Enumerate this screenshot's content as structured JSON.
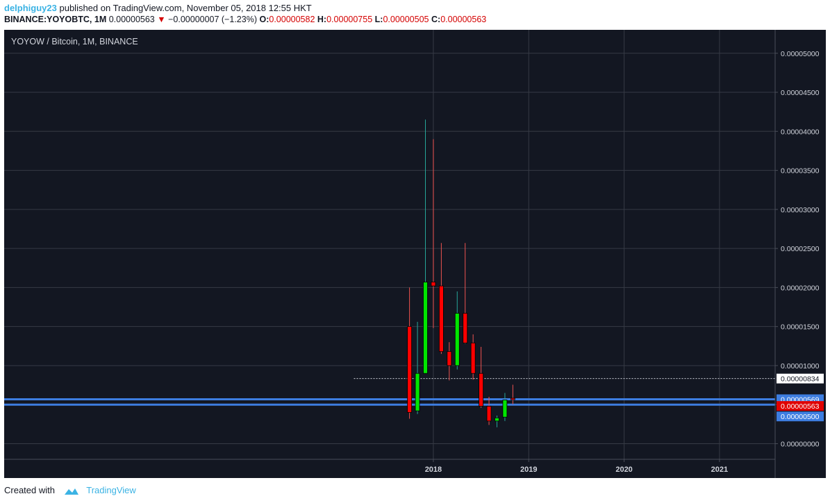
{
  "header": {
    "author": "delphiguy23",
    "publish_text": "published on TradingView.com, November 05, 2018 12:55 HKT",
    "symbol": "BINANCE:YOYOBTC, 1M",
    "price": "0.00000563",
    "change": "−0.00000007 (−1.23%)",
    "open_label": "O:",
    "open": "0.00000582",
    "high_label": "H:",
    "high": "0.00000755",
    "low_label": "L:",
    "low": "0.00000505",
    "close_label": "C:",
    "close": "0.00000563"
  },
  "footer": {
    "created_with": "Created with",
    "brand": "TradingView"
  },
  "colors": {
    "up": "#00e600",
    "down": "#ff0000",
    "background": "#131722",
    "grid": "#363a45",
    "hline": "#3d7de0"
  },
  "chart_data": {
    "type": "candlestick",
    "title": "YOYOW / Bitcoin, 1M, BINANCE",
    "ylim": [
      -2e-06,
      5.3e-05
    ],
    "y_ticks": [
      "0.00005000",
      "0.00004500",
      "0.00004000",
      "0.00003500",
      "0.00003000",
      "0.00002500",
      "0.00002000",
      "0.00001500",
      "0.00001000",
      "0.00000500",
      "0.00000000"
    ],
    "x_ticks": [
      "2018",
      "2019",
      "2020",
      "2021"
    ],
    "x_tick_months": [
      14,
      26,
      38,
      50
    ],
    "xlim": [
      -40,
      57
    ],
    "grid": true,
    "candles": [
      {
        "m": 11,
        "o": 1.5e-05,
        "h": 2e-05,
        "l": 3.2e-06,
        "c": 4e-06
      },
      {
        "m": 12,
        "o": 4.2e-06,
        "h": 1.56e-05,
        "l": 3.8e-06,
        "c": 9e-06
      },
      {
        "m": 13,
        "o": 9e-06,
        "h": 4.15e-05,
        "l": 9e-06,
        "c": 2.07e-05
      },
      {
        "m": 14,
        "o": 2.07e-05,
        "h": 3.9e-05,
        "l": 1.48e-05,
        "c": 2.02e-05
      },
      {
        "m": 15,
        "o": 2.02e-05,
        "h": 2.57e-05,
        "l": 1.15e-05,
        "c": 1.18e-05
      },
      {
        "m": 16,
        "o": 1.18e-05,
        "h": 1.3e-05,
        "l": 8.1e-06,
        "c": 1e-05
      },
      {
        "m": 17,
        "o": 1e-05,
        "h": 1.95e-05,
        "l": 9.5e-06,
        "c": 1.67e-05
      },
      {
        "m": 18,
        "o": 1.67e-05,
        "h": 2.57e-05,
        "l": 1.28e-05,
        "c": 1.29e-05
      },
      {
        "m": 19,
        "o": 1.29e-05,
        "h": 1.4e-05,
        "l": 8.2e-06,
        "c": 9e-06
      },
      {
        "m": 20,
        "o": 9e-06,
        "h": 1.24e-05,
        "l": 4.6e-06,
        "c": 4.8e-06
      },
      {
        "m": 21,
        "o": 4.8e-06,
        "h": 6e-06,
        "l": 2.4e-06,
        "c": 2.9e-06
      },
      {
        "m": 22,
        "o": 2.9e-06,
        "h": 3.6e-06,
        "l": 2.1e-06,
        "c": 3.3e-06
      },
      {
        "m": 23,
        "o": 3.4e-06,
        "h": 6.5e-06,
        "l": 2.9e-06,
        "c": 5.6e-06
      },
      {
        "m": 24,
        "o": 5.82e-06,
        "h": 7.55e-06,
        "l": 5.05e-06,
        "c": 5.63e-06
      }
    ],
    "h_lines": [
      {
        "value": 5.69e-06,
        "label": "0.00000569"
      },
      {
        "value": 5e-06,
        "label": "0.00000500"
      }
    ],
    "dotted_line": {
      "value": 8.34e-06,
      "label": "0.00000834",
      "start_month": 4
    },
    "last_price_label": "0.00000563"
  }
}
